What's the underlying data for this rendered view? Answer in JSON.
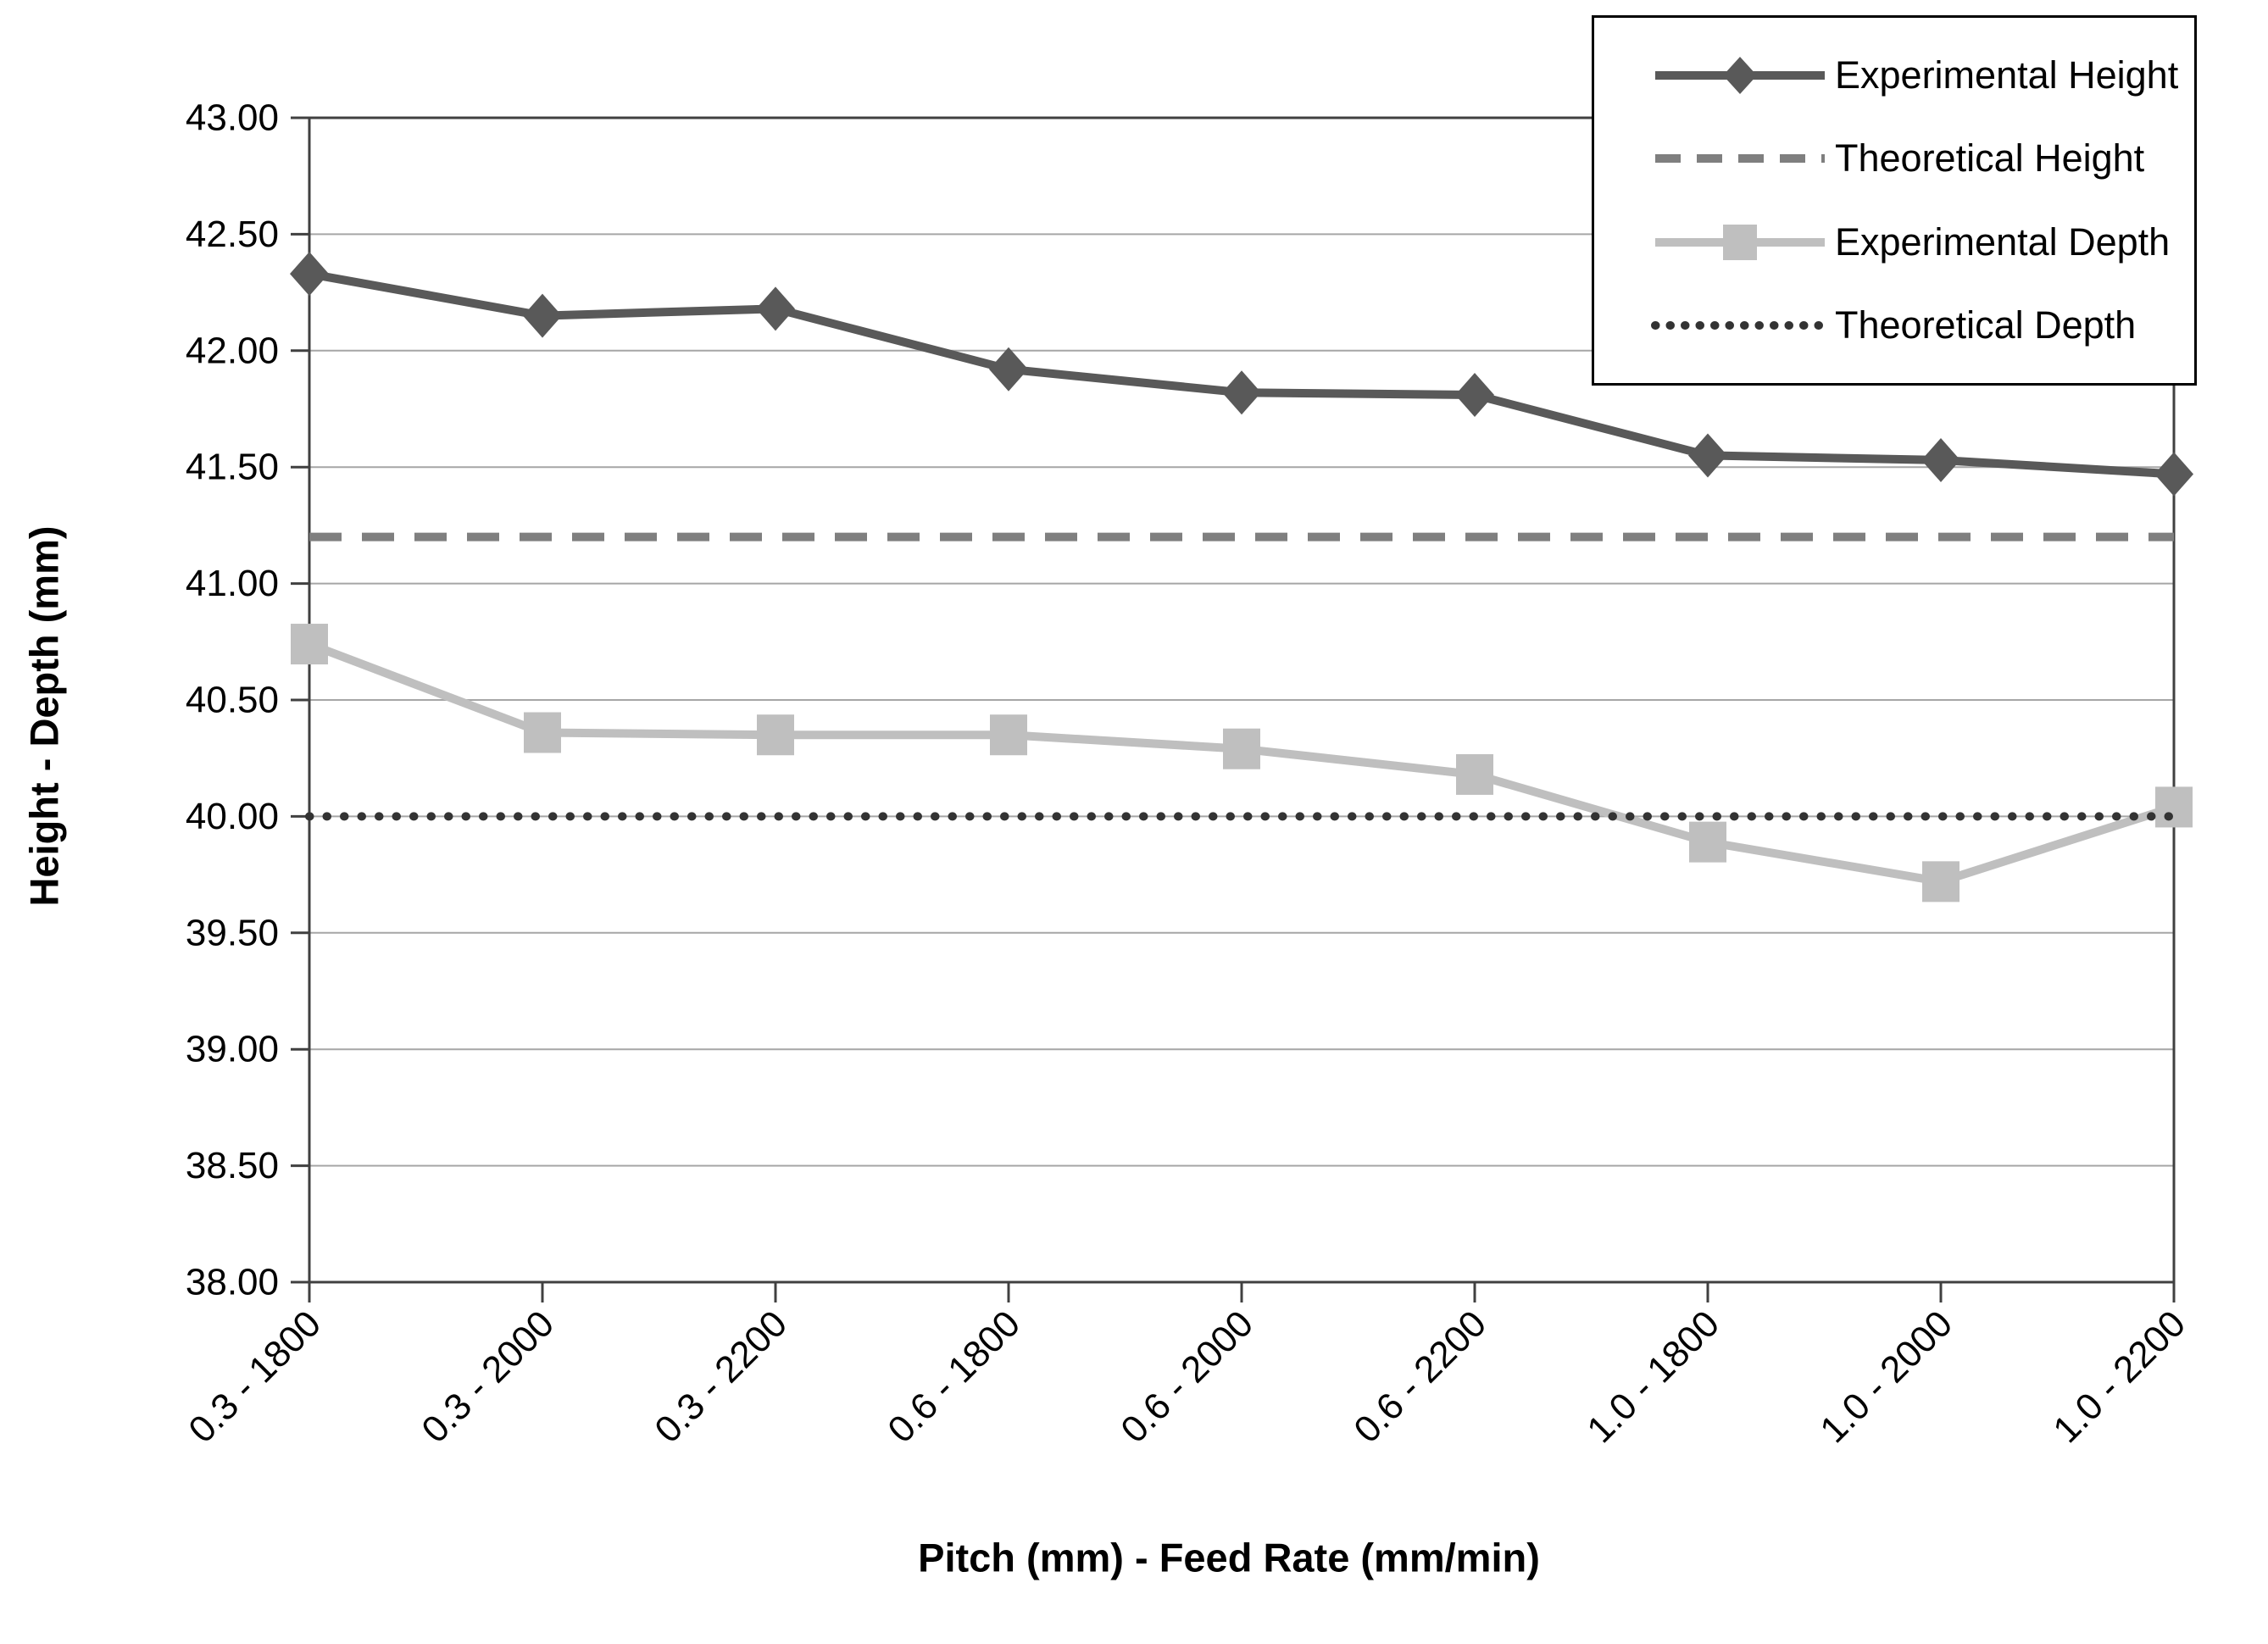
{
  "figure": {
    "background": "#FFFFFF"
  },
  "chart_data": {
    "type": "line",
    "title": "",
    "xlabel": "Pitch (mm) - Feed Rate (mm/min)",
    "ylabel": "Height - Depth (mm)",
    "categories": [
      "0.3 - 1800",
      "0.3 - 2000",
      "0.3 - 2200",
      "0.6 - 1800",
      "0.6 - 2000",
      "0.6 - 2200",
      "1.0 - 1800",
      "1.0 - 2000",
      "1.0 - 2200"
    ],
    "y_axis": {
      "min": 38.0,
      "max": 43.0,
      "step": 0.5,
      "tick_format": "2dp"
    },
    "grid": true,
    "gridline_color": "#A6A6A6",
    "axis_color": "#404040",
    "legend": {
      "position": "top-right",
      "border_color": "#000000",
      "background": "#FFFFFF"
    },
    "series": [
      {
        "name": "Experimental Height",
        "color": "#595959",
        "style": "solid",
        "marker": "diamond",
        "values": [
          42.33,
          42.15,
          42.18,
          41.92,
          41.82,
          41.81,
          41.55,
          41.53,
          41.47
        ]
      },
      {
        "name": "Theoretical Height",
        "color": "#7F7F7F",
        "style": "dashed",
        "marker": "none",
        "values": [
          41.2,
          41.2,
          41.2,
          41.2,
          41.2,
          41.2,
          41.2,
          41.2,
          41.2
        ]
      },
      {
        "name": "Experimental Depth",
        "color": "#BFBFBF",
        "style": "solid",
        "marker": "square",
        "values": [
          40.74,
          40.36,
          40.35,
          40.35,
          40.29,
          40.18,
          39.89,
          39.72,
          40.04
        ]
      },
      {
        "name": "Theoretical Depth",
        "color": "#333333",
        "style": "dotted",
        "marker": "none",
        "values": [
          40.0,
          40.0,
          40.0,
          40.0,
          40.0,
          40.0,
          40.0,
          40.0,
          40.0
        ]
      }
    ]
  }
}
